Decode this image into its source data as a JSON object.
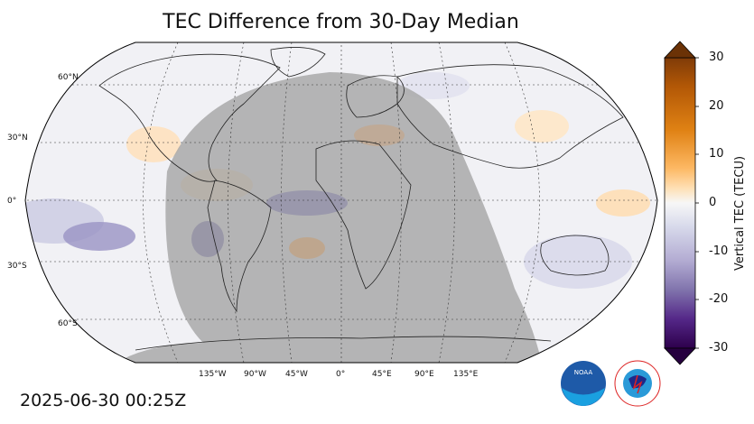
{
  "title": "TEC Difference from 30-Day Median",
  "timestamp": "2025-06-30 00:25Z",
  "lat_labels": [
    "60°N",
    "30°N",
    "0°",
    "30°S",
    "60°S"
  ],
  "lon_labels": [
    "135°W",
    "90°W",
    "45°W",
    "0°",
    "45°E",
    "90°E",
    "135°E"
  ],
  "colorbar": {
    "label": "Vertical TEC (TECU)",
    "ticks": [
      "30",
      "20",
      "10",
      "0",
      "-10",
      "-20",
      "-30"
    ],
    "range": [
      -30,
      30
    ],
    "colors": [
      "#2d004b",
      "#542788",
      "#8073ac",
      "#b2abd2",
      "#d8daeb",
      "#f7f7f7",
      "#fee0b6",
      "#fdb863",
      "#e08214",
      "#b35806",
      "#7f3b08"
    ]
  },
  "logos": {
    "noaa": "NOAA",
    "nws": "NATIONAL WEATHER SERVICE"
  },
  "colors": {
    "night_shade": "#a9a9a9",
    "map_bg": "#f2f2f5"
  }
}
